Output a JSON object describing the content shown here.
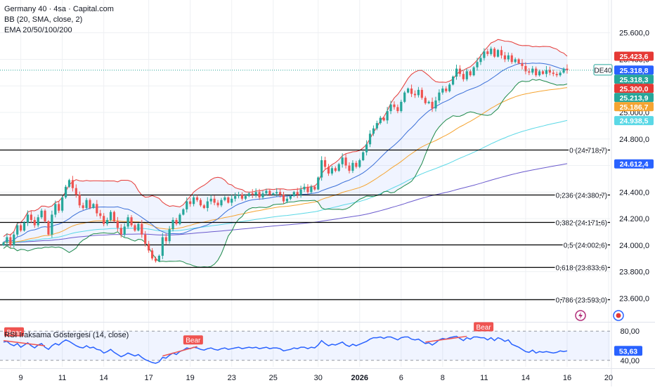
{
  "legend": {
    "symbol": "Germany 40 · 4sa · Capital.com",
    "bb": "BB (20, SMA, close, 2)",
    "ema": "EMA 20/50/100/200"
  },
  "rsi_title": "RSI Iraksama Göstergesi (14, close)",
  "colors": {
    "up": "#26a69a",
    "down": "#ef5350",
    "bb_upper": "#e53935",
    "bb_lower": "#1e8a4a",
    "bb_basis": "#3a6fd8",
    "ema20": "#3a6fd8",
    "ema50": "#f5a431",
    "ema100": "#5ad8e6",
    "ema200": "#6a5acd",
    "rsi_line": "#2962ff",
    "grid": "#eef0f3"
  },
  "chart_data": [
    {
      "type": "candlestick",
      "title": "Germany 40 · 4sa · Capital.com",
      "ylim": [
        23470,
        25720
      ],
      "y_ticks": [
        "25.600,0",
        "25.400,0",
        "25.200,0",
        "25.000,0",
        "24.800,0",
        "24.600,0",
        "24.400,0",
        "24.200,0",
        "24.000,0",
        "23.800,0",
        "23.600,0"
      ],
      "y_tick_values": [
        25600,
        25400,
        25200,
        25000,
        24800,
        24600,
        24400,
        24200,
        24000,
        23800,
        23600
      ],
      "x_ticks": [
        "9",
        "11",
        "14",
        "17",
        "19",
        "23",
        "25",
        "30",
        "2026",
        "6",
        "8",
        "11",
        "14",
        "16",
        "20"
      ],
      "x_tick_index": [
        5,
        17,
        29,
        42,
        54,
        66,
        78,
        91,
        103,
        115,
        127,
        139,
        151,
        163,
        175
      ],
      "closes": [
        24020,
        24060,
        24000,
        24080,
        24150,
        24110,
        24170,
        24230,
        24190,
        24150,
        24210,
        24260,
        24180,
        24080,
        24230,
        24310,
        24260,
        24360,
        24440,
        24490,
        24430,
        24380,
        24300,
        24280,
        24340,
        24280,
        24310,
        24240,
        24220,
        24160,
        24190,
        24250,
        24180,
        24130,
        24080,
        24140,
        24210,
        24150,
        24110,
        24160,
        24080,
        24010,
        23960,
        23900,
        23880,
        23920,
        24060,
        24030,
        24120,
        24190,
        24160,
        24230,
        24270,
        24330,
        24310,
        24360,
        24340,
        24300,
        24280,
        24330,
        24350,
        24320,
        24300,
        24340,
        24360,
        24320,
        24350,
        24370,
        24380,
        24350,
        24370,
        24390,
        24380,
        24400,
        24360,
        24390,
        24410,
        24380,
        24390,
        24400,
        24380,
        24330,
        24350,
        24370,
        24400,
        24380,
        24420,
        24440,
        24400,
        24440,
        24420,
        24510,
        24640,
        24590,
        24540,
        24580,
        24560,
        24610,
        24660,
        24600,
        24560,
        24620,
        24590,
        24640,
        24700,
        24760,
        24840,
        24880,
        24920,
        24960,
        24940,
        25010,
        25060,
        25040,
        25010,
        25080,
        25150,
        25180,
        25140,
        25130,
        25170,
        25110,
        25070,
        25080,
        25030,
        25090,
        25150,
        25180,
        25160,
        25210,
        25270,
        25330,
        25290,
        25250,
        25310,
        25280,
        25340,
        25380,
        25410,
        25460,
        25440,
        25480,
        25420,
        25470,
        25430,
        25400,
        25430,
        25380,
        25400,
        25370,
        25350,
        25310,
        25300,
        25330,
        25280,
        25310,
        25290,
        25320,
        25300,
        25290,
        25280,
        25300,
        25330,
        25318
      ],
      "ema20_last": 25300.0,
      "ema50_last": 25186.7,
      "ema100_last": 24938.5,
      "ema200_last": 24612.4,
      "bb_upper_last": 25423.6,
      "bb_basis_last": 25318.8,
      "bb_lower_last": 25213.9,
      "last_price": 25318.3,
      "symbol_tag": "DE40",
      "price_labels": [
        {
          "text": "25.423,6",
          "value": 25423.6,
          "color": "#e53935"
        },
        {
          "text": "25.318,8",
          "value": 25318.8,
          "color": "#2962ff"
        },
        {
          "text": "25.318,3",
          "value": 25318.3,
          "color": "#26a69a"
        },
        {
          "text": "25.300,0",
          "value": 25300.0,
          "color": "#e53935"
        },
        {
          "text": "25.213,9",
          "value": 25213.9,
          "color": "#26a69a"
        },
        {
          "text": "25.186,7",
          "value": 25186.7,
          "color": "#f5a431"
        },
        {
          "text": "24.938,5",
          "value": 24938.5,
          "color": "#5ad8e6"
        },
        {
          "text": "24.612,4",
          "value": 24612.4,
          "color": "#2962ff"
        }
      ],
      "fib_levels": [
        {
          "ratio": "0",
          "price": 24718.7,
          "label": "0 (24.718,7)"
        },
        {
          "ratio": "0,236",
          "price": 24380.7,
          "label": "0,236 (24.380,7)"
        },
        {
          "ratio": "0,382",
          "price": 24171.6,
          "label": "0,382 (24.171,6)"
        },
        {
          "ratio": "0,5",
          "price": 24002.6,
          "label": "0,5 (24.002,6)"
        },
        {
          "ratio": "0,618",
          "price": 23833.6,
          "label": "0,618 (23.833,6)"
        },
        {
          "ratio": "0,786",
          "price": 23593.0,
          "label": "0,786 (23.593,0)"
        }
      ]
    },
    {
      "type": "line",
      "title": "RSI Iraksama Göstergesi (14, close)",
      "ylim": [
        35,
        85
      ],
      "y_ticks": [
        "80,00",
        "40,00"
      ],
      "y_tick_values": [
        80,
        40
      ],
      "band": [
        40,
        80
      ],
      "values": [
        65,
        66,
        62,
        60,
        63,
        58,
        61,
        64,
        60,
        57,
        61,
        63,
        58,
        55,
        60,
        63,
        61,
        65,
        68,
        66,
        63,
        60,
        58,
        57,
        60,
        57,
        58,
        55,
        54,
        50,
        52,
        55,
        51,
        48,
        45,
        47,
        50,
        48,
        46,
        48,
        44,
        41,
        39,
        37,
        36,
        38,
        44,
        43,
        47,
        50,
        48,
        52,
        54,
        57,
        56,
        58,
        57,
        55,
        54,
        56,
        57,
        55,
        54,
        56,
        57,
        55,
        56,
        57,
        58,
        56,
        57,
        58,
        57,
        58,
        56,
        57,
        58,
        56,
        57,
        57,
        56,
        53,
        54,
        55,
        57,
        56,
        58,
        58,
        56,
        58,
        57,
        61,
        67,
        63,
        60,
        62,
        61,
        63,
        65,
        61,
        59,
        62,
        60,
        62,
        64,
        66,
        69,
        71,
        71,
        72,
        70,
        72,
        72,
        70,
        68,
        71,
        72,
        72,
        69,
        68,
        69,
        66,
        63,
        64,
        61,
        64,
        68,
        70,
        69,
        71,
        72,
        73,
        70,
        67,
        71,
        69,
        72,
        72,
        71,
        71,
        68,
        71,
        67,
        71,
        69,
        66,
        68,
        62,
        60,
        58,
        55,
        52,
        51,
        54,
        50,
        52,
        51,
        52,
        51,
        50,
        51,
        53,
        52,
        53
      ],
      "last_value": "53,63",
      "bear_labels": [
        {
          "text": "Bear",
          "index": 0
        },
        {
          "text": "Bear",
          "index": 52
        },
        {
          "text": "Bear",
          "index": 136
        }
      ],
      "divergence_lines": [
        {
          "from": 0,
          "to": 12
        },
        {
          "from": 46,
          "to": 56
        },
        {
          "from": 122,
          "to": 134
        }
      ]
    }
  ]
}
